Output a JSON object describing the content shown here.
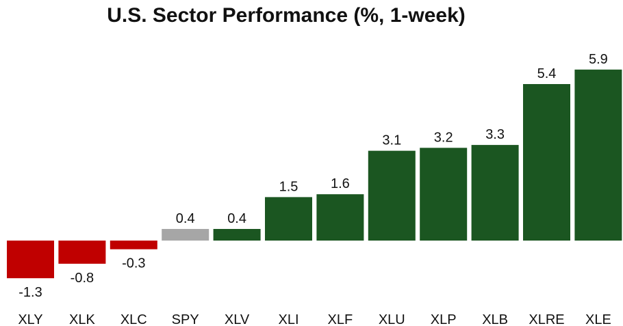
{
  "chart_data": {
    "type": "bar",
    "title": "U.S. Sector Performance (%, 1-week)",
    "xlabel": "",
    "ylabel": "",
    "categories": [
      "XLY",
      "XLK",
      "XLC",
      "SPY",
      "XLV",
      "XLI",
      "XLF",
      "XLU",
      "XLP",
      "XLB",
      "XLRE",
      "XLE"
    ],
    "values": [
      -1.3,
      -0.8,
      -0.3,
      0.4,
      0.4,
      1.5,
      1.6,
      3.1,
      3.2,
      3.3,
      5.4,
      5.9
    ],
    "data_labels": [
      "-1.3",
      "-0.8",
      "-0.3",
      "0.4",
      "0.4",
      "1.5",
      "1.6",
      "3.1",
      "3.2",
      "3.3",
      "5.4",
      "5.9"
    ],
    "ylim": [
      -1.3,
      5.9
    ],
    "grid": false,
    "legend": "none",
    "colors": {
      "positive": "#1b5621",
      "negative": "#c00000",
      "benchmark": "#a6a6a6"
    },
    "benchmark_category": "SPY"
  }
}
